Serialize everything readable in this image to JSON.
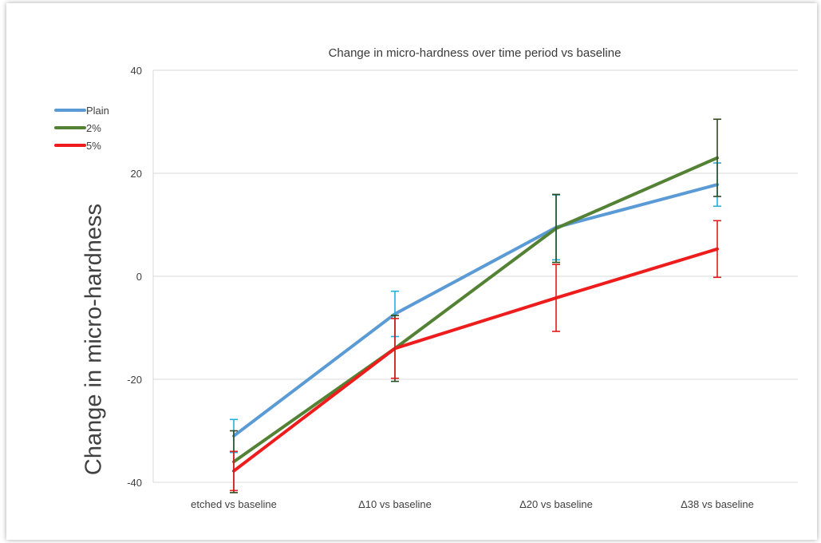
{
  "chart_data": {
    "type": "line",
    "title": "Change in micro-hardness over time period vs baseline",
    "xlabel": "",
    "ylabel": "Change in micro-hardness",
    "ylim": [
      -40,
      40
    ],
    "yticks": [
      40,
      20,
      0,
      -20,
      -40
    ],
    "categories": [
      "etched vs baseline",
      "Δ10 vs baseline",
      "Δ20 vs baseline",
      "Δ38 vs baseline"
    ],
    "grid": true,
    "legend": "top-left",
    "series": [
      {
        "name": "Plain",
        "color": "#5b9bd5",
        "errorbar_color": "#22b0e0",
        "values": [
          -31,
          -7.3,
          9.5,
          17.8
        ],
        "err_low": [
          3.2,
          4.4,
          6.3,
          4.2
        ],
        "err_high": [
          3.2,
          4.4,
          6.3,
          4.2
        ]
      },
      {
        "name": "2%",
        "color": "#548235",
        "errorbar_color": "#2e4b1f",
        "values": [
          -36,
          -14,
          9.3,
          23
        ],
        "err_low": [
          6,
          6.4,
          6.6,
          7.5
        ],
        "err_high": [
          6,
          6.4,
          6.6,
          7.5
        ]
      },
      {
        "name": "5%",
        "color": "#ee1c1c",
        "errorbar_color": "#e21b1b",
        "values": [
          -37.8,
          -14,
          -4.2,
          5.3
        ],
        "err_low": [
          3.8,
          5.8,
          6.5,
          5.5
        ],
        "err_high": [
          3.8,
          5.8,
          6.5,
          5.5
        ]
      }
    ]
  }
}
